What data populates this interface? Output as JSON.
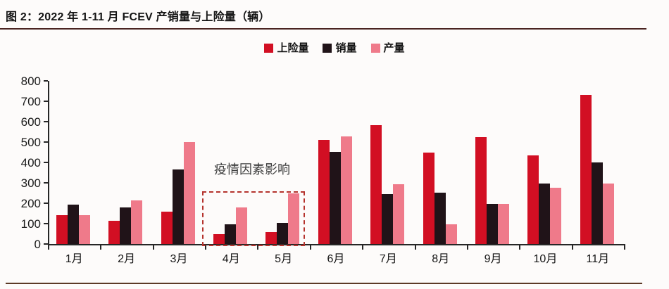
{
  "header": {
    "title": "图 2：2022 年 1-11 月 FCEV 产销量与上险量（辆）"
  },
  "chart_data": {
    "type": "bar",
    "title": "2022 年 1-11 月 FCEV 产销量与上险量（辆）",
    "categories": [
      "1月",
      "2月",
      "3月",
      "4月",
      "5月",
      "6月",
      "7月",
      "8月",
      "9月",
      "10月",
      "11月"
    ],
    "series": [
      {
        "name": "上险量",
        "key": "insured",
        "color": "#d20f23",
        "values": [
          140,
          115,
          157,
          50,
          60,
          510,
          584,
          447,
          525,
          435,
          732
        ]
      },
      {
        "name": "销量",
        "key": "sales",
        "color": "#201318",
        "values": [
          193,
          178,
          366,
          95,
          103,
          453,
          246,
          253,
          197,
          297,
          399
        ]
      },
      {
        "name": "产量",
        "key": "production",
        "color": "#ef7a8a",
        "values": [
          140,
          215,
          500,
          178,
          247,
          526,
          292,
          98,
          197,
          277,
          297
        ]
      }
    ],
    "xlabel": "",
    "ylabel": "",
    "ylim": [
      0,
      800
    ],
    "y_ticks": [
      0,
      100,
      200,
      300,
      400,
      500,
      600,
      700,
      800
    ],
    "grid": false,
    "legend_position": "top-center",
    "annotation": {
      "text": "疫情因素影响",
      "highlight_months": [
        "4月",
        "5月"
      ],
      "box_color": "#b5332d"
    }
  },
  "colors": {
    "accent_red": "#d20f23",
    "bar_black": "#201318",
    "bar_pink": "#ef7a8a",
    "axis": "#262626",
    "title_rule": "#4a2421",
    "bottom_rule": "#5c3a26",
    "annotation_box": "#b5332d"
  }
}
